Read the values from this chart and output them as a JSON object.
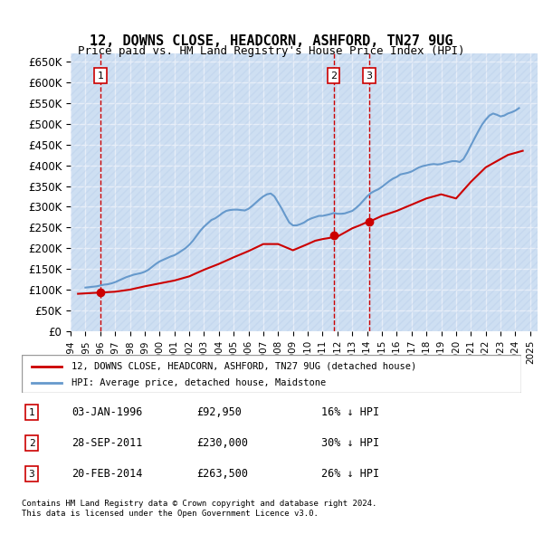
{
  "title": "12, DOWNS CLOSE, HEADCORN, ASHFORD, TN27 9UG",
  "subtitle": "Price paid vs. HM Land Registry's House Price Index (HPI)",
  "ylabel_ticks": [
    "£0",
    "£50K",
    "£100K",
    "£150K",
    "£200K",
    "£250K",
    "£300K",
    "£350K",
    "£400K",
    "£450K",
    "£500K",
    "£550K",
    "£600K",
    "£650K"
  ],
  "ytick_values": [
    0,
    50000,
    100000,
    150000,
    200000,
    250000,
    300000,
    350000,
    400000,
    450000,
    500000,
    550000,
    600000,
    650000
  ],
  "xlim_start": 1994.0,
  "xlim_end": 2025.5,
  "ylim_min": 0,
  "ylim_max": 670000,
  "background_color": "#dce9f7",
  "hatch_color": "#b0c8e8",
  "grid_color": "#ffffff",
  "sale_color": "#cc0000",
  "hpi_color": "#6699cc",
  "vline_color": "#cc0000",
  "sale_marker_color": "#cc0000",
  "transactions": [
    {
      "label": "1",
      "date_num": 1996.01,
      "price": 92950
    },
    {
      "label": "2",
      "date_num": 2011.74,
      "price": 230000
    },
    {
      "label": "3",
      "date_num": 2014.13,
      "price": 263500
    }
  ],
  "legend_sale_label": "12, DOWNS CLOSE, HEADCORN, ASHFORD, TN27 9UG (detached house)",
  "legend_hpi_label": "HPI: Average price, detached house, Maidstone",
  "table_rows": [
    [
      "1",
      "03-JAN-1996",
      "£92,950",
      "16% ↓ HPI"
    ],
    [
      "2",
      "28-SEP-2011",
      "£230,000",
      "30% ↓ HPI"
    ],
    [
      "3",
      "20-FEB-2014",
      "£263,500",
      "26% ↓ HPI"
    ]
  ],
  "footnote1": "Contains HM Land Registry data © Crown copyright and database right 2024.",
  "footnote2": "This data is licensed under the Open Government Licence v3.0.",
  "hpi_data_x": [
    1995.0,
    1995.25,
    1995.5,
    1995.75,
    1996.0,
    1996.25,
    1996.5,
    1996.75,
    1997.0,
    1997.25,
    1997.5,
    1997.75,
    1998.0,
    1998.25,
    1998.5,
    1998.75,
    1999.0,
    1999.25,
    1999.5,
    1999.75,
    2000.0,
    2000.25,
    2000.5,
    2000.75,
    2001.0,
    2001.25,
    2001.5,
    2001.75,
    2002.0,
    2002.25,
    2002.5,
    2002.75,
    2003.0,
    2003.25,
    2003.5,
    2003.75,
    2004.0,
    2004.25,
    2004.5,
    2004.75,
    2005.0,
    2005.25,
    2005.5,
    2005.75,
    2006.0,
    2006.25,
    2006.5,
    2006.75,
    2007.0,
    2007.25,
    2007.5,
    2007.75,
    2008.0,
    2008.25,
    2008.5,
    2008.75,
    2009.0,
    2009.25,
    2009.5,
    2009.75,
    2010.0,
    2010.25,
    2010.5,
    2010.75,
    2011.0,
    2011.25,
    2011.5,
    2011.75,
    2012.0,
    2012.25,
    2012.5,
    2012.75,
    2013.0,
    2013.25,
    2013.5,
    2013.75,
    2014.0,
    2014.25,
    2014.5,
    2014.75,
    2015.0,
    2015.25,
    2015.5,
    2015.75,
    2016.0,
    2016.25,
    2016.5,
    2016.75,
    2017.0,
    2017.25,
    2017.5,
    2017.75,
    2018.0,
    2018.25,
    2018.5,
    2018.75,
    2019.0,
    2019.25,
    2019.5,
    2019.75,
    2020.0,
    2020.25,
    2020.5,
    2020.75,
    2021.0,
    2021.25,
    2021.5,
    2021.75,
    2022.0,
    2022.25,
    2022.5,
    2022.75,
    2023.0,
    2023.25,
    2023.5,
    2023.75,
    2024.0,
    2024.25
  ],
  "hpi_data_y": [
    105000,
    106000,
    107000,
    108000,
    110000,
    112000,
    113000,
    115000,
    118000,
    122000,
    126000,
    130000,
    133000,
    136000,
    138000,
    140000,
    143000,
    148000,
    155000,
    162000,
    168000,
    172000,
    176000,
    180000,
    183000,
    188000,
    194000,
    200000,
    208000,
    218000,
    230000,
    242000,
    252000,
    260000,
    268000,
    272000,
    278000,
    285000,
    290000,
    292000,
    293000,
    293000,
    292000,
    291000,
    295000,
    302000,
    310000,
    318000,
    325000,
    330000,
    332000,
    325000,
    310000,
    295000,
    278000,
    262000,
    255000,
    255000,
    258000,
    262000,
    268000,
    272000,
    275000,
    278000,
    278000,
    280000,
    282000,
    285000,
    283000,
    283000,
    284000,
    287000,
    290000,
    297000,
    305000,
    315000,
    325000,
    333000,
    338000,
    342000,
    348000,
    355000,
    362000,
    368000,
    372000,
    378000,
    380000,
    382000,
    385000,
    390000,
    395000,
    398000,
    400000,
    402000,
    403000,
    402000,
    403000,
    406000,
    408000,
    410000,
    410000,
    408000,
    415000,
    430000,
    448000,
    465000,
    482000,
    498000,
    510000,
    520000,
    525000,
    522000,
    518000,
    520000,
    525000,
    528000,
    532000,
    538000
  ],
  "sale_line_x": [
    1994.5,
    1995.0,
    1995.5,
    1996.01,
    1997.0,
    1998.0,
    1999.0,
    2000.0,
    2001.0,
    2002.0,
    2003.0,
    2004.0,
    2005.0,
    2006.0,
    2007.0,
    2008.0,
    2009.0,
    2010.0,
    2010.5,
    2011.0,
    2011.5,
    2011.74,
    2012.0,
    2012.5,
    2013.0,
    2013.5,
    2014.0,
    2014.13,
    2015.0,
    2016.0,
    2017.0,
    2018.0,
    2019.0,
    2020.0,
    2021.0,
    2022.0,
    2023.0,
    2023.5,
    2024.0,
    2024.5
  ],
  "sale_line_y": [
    90000,
    91000,
    92000,
    92950,
    95000,
    100000,
    108000,
    115000,
    122000,
    132000,
    148000,
    162000,
    178000,
    193000,
    210000,
    210000,
    195000,
    210000,
    218000,
    222000,
    225000,
    230000,
    228000,
    238000,
    248000,
    255000,
    263000,
    263500,
    278000,
    290000,
    305000,
    320000,
    330000,
    320000,
    360000,
    395000,
    415000,
    425000,
    430000,
    435000
  ]
}
